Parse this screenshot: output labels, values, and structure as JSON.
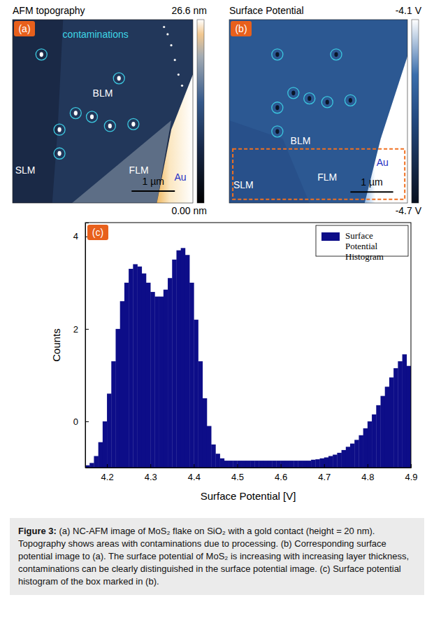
{
  "panels": [
    {
      "label": "(a)",
      "title": "AFM topography",
      "colorbar": {
        "range": [
          0,
          26.6
        ],
        "ticks": [
          {
            "value": 26.6,
            "label": "26.6 nm"
          },
          {
            "value": 0,
            "label": "0.00 nm"
          }
        ]
      },
      "annotations": [
        "contaminations",
        "BLM",
        "SLM",
        "FLM",
        "Au"
      ],
      "scale_bar": "1 µm"
    },
    {
      "label": "(b)",
      "title": "Surface Potential",
      "colorbar": {
        "range": [
          -4.7,
          -4.1
        ],
        "ticks": [
          {
            "value": -4.1,
            "label": "-4.1 V"
          },
          {
            "value": -4.7,
            "label": "-4.7 V"
          }
        ]
      },
      "annotations": [
        "BLM",
        "FLM",
        "SLM",
        "Au"
      ],
      "scale_bar": "1 µm"
    }
  ],
  "chart_data": {
    "type": "histogram",
    "label": "(c)",
    "name": "Surface Potential Histogram",
    "color": "#0d0d88",
    "bins": [
      4.15,
      4.16,
      4.17,
      4.18,
      4.19,
      4.2,
      4.21,
      4.22,
      4.23,
      4.24,
      4.25,
      4.26,
      4.27,
      4.28,
      4.29,
      4.3,
      4.31,
      4.32,
      4.33,
      4.34,
      4.35,
      4.36,
      4.37,
      4.38,
      4.39,
      4.4,
      4.41,
      4.42,
      4.43,
      4.44,
      4.45,
      4.46,
      4.47,
      4.48,
      4.49,
      4.5,
      4.51,
      4.52,
      4.53,
      4.54,
      4.55,
      4.56,
      4.57,
      4.58,
      4.59,
      4.6,
      4.61,
      4.62,
      4.63,
      4.64,
      4.65,
      4.66,
      4.67,
      4.68,
      4.69,
      4.7,
      4.71,
      4.72,
      4.73,
      4.74,
      4.75,
      4.76,
      4.77,
      4.78,
      4.79,
      4.8,
      4.81,
      4.82,
      4.83,
      4.84,
      4.85,
      4.86,
      4.87,
      4.88,
      4.89,
      4.9
    ],
    "counts": [
      -0.95,
      -0.9,
      -0.75,
      -0.45,
      0,
      0.6,
      1.3,
      2.0,
      2.6,
      3.0,
      3.3,
      3.4,
      3.35,
      3.2,
      3.0,
      2.8,
      2.7,
      2.7,
      2.85,
      3.1,
      3.5,
      3.7,
      3.75,
      3.6,
      3.0,
      2.2,
      1.3,
      0.5,
      -0.1,
      -0.5,
      -0.7,
      -0.8,
      -0.85,
      -0.85,
      -0.85,
      -0.85,
      -0.85,
      -0.85,
      -0.85,
      -0.85,
      -0.85,
      -0.85,
      -0.85,
      -0.85,
      -0.85,
      -0.85,
      -0.85,
      -0.85,
      -0.85,
      -0.85,
      -0.85,
      -0.85,
      -0.83,
      -0.82,
      -0.8,
      -0.78,
      -0.75,
      -0.72,
      -0.68,
      -0.62,
      -0.55,
      -0.48,
      -0.4,
      -0.3,
      -0.15,
      0,
      0.15,
      0.35,
      0.55,
      0.75,
      0.95,
      1.15,
      1.3,
      1.45,
      1.2
    ],
    "xlabel": "Surface Potential [V]",
    "ylabel": "Counts",
    "xlim": [
      4.15,
      4.9
    ],
    "ylim": [
      -1,
      4.3
    ],
    "xticks": [
      4.2,
      4.3,
      4.4,
      4.5,
      4.6,
      4.7,
      4.8,
      4.9
    ],
    "yticks": [
      0,
      2,
      4
    ],
    "legend": "upper right"
  },
  "caption": {
    "label": "Figure 3:",
    "text": "(a) NC-AFM image of MoS₂ flake on SiO₂ with a gold contact (height = 20 nm). Topography shows areas with contaminations due to processing. (b) Corresponding surface potential image to (a). The surface potential of MoS₂ is increasing with increasing layer thickness, contaminations can be clearly distinguished in the surface potential image. (c) Surface potential histogram of the box marked in (b)."
  }
}
